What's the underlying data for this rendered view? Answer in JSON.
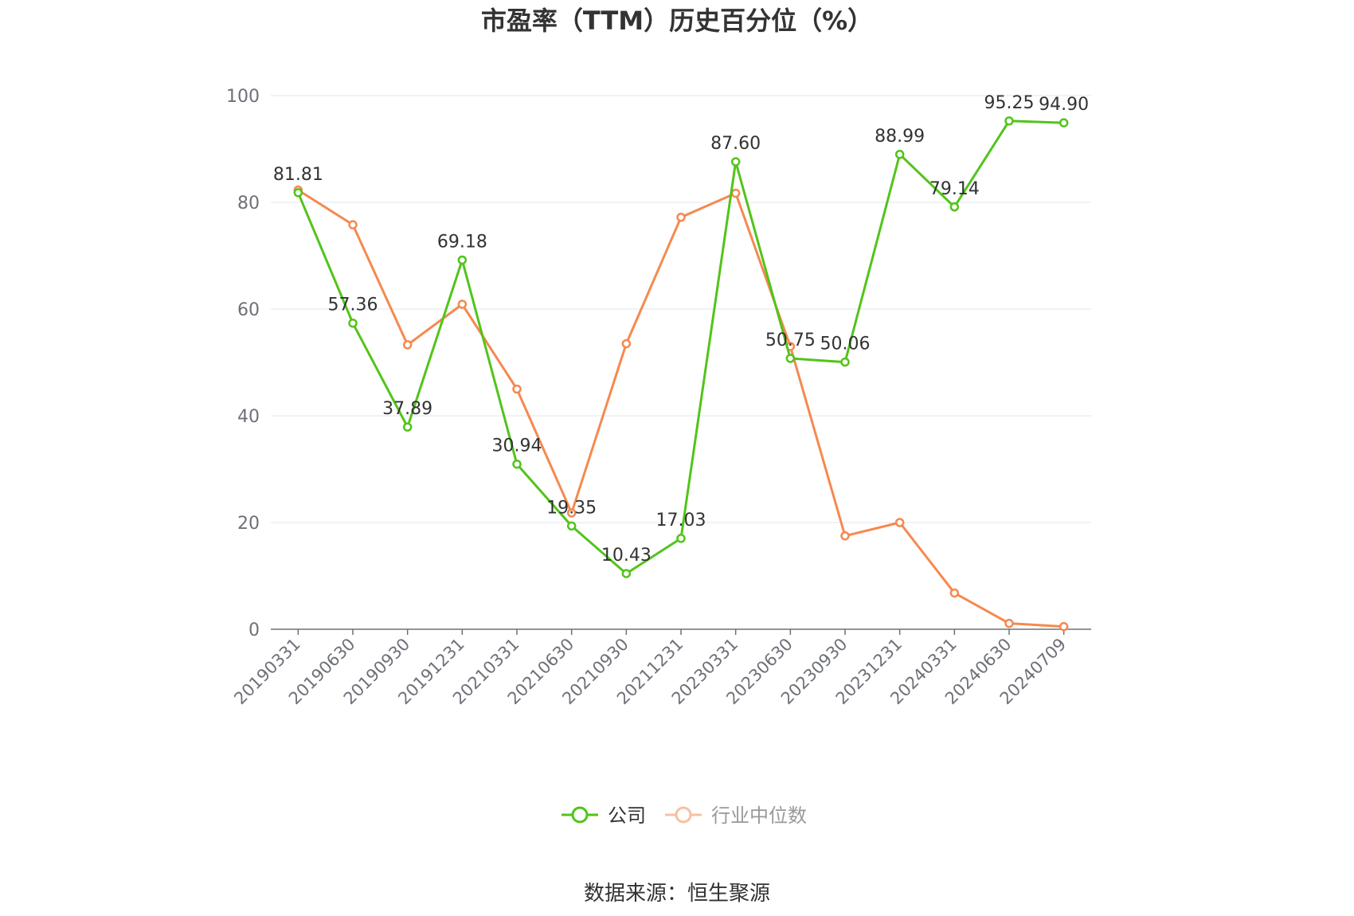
{
  "chart_data": {
    "type": "line",
    "title": "市盈率（TTM）历史百分位（%）",
    "source": "数据来源：恒生聚源",
    "categories": [
      "20190331",
      "20190630",
      "20190930",
      "20191231",
      "20210331",
      "20210630",
      "20210930",
      "20211231",
      "20230331",
      "20230630",
      "20230930",
      "20231231",
      "20240331",
      "20240630",
      "20240709"
    ],
    "ylim": [
      0,
      100
    ],
    "yticks": [
      0,
      20,
      40,
      60,
      80,
      100
    ],
    "grid": true,
    "legend_position": "bottom",
    "series": [
      {
        "name": "公司",
        "color": "#52c41a",
        "values": [
          81.81,
          57.36,
          37.89,
          69.18,
          30.94,
          19.35,
          10.43,
          17.03,
          87.6,
          50.75,
          50.06,
          88.99,
          79.14,
          95.25,
          94.9
        ],
        "labels": [
          "81.81",
          "57.36",
          "37.89",
          "69.18",
          "30.94",
          "19.35",
          "10.43",
          "17.03",
          "87.60",
          "50.75",
          "50.06",
          "88.99",
          "79.14",
          "95.25",
          "94.90"
        ]
      },
      {
        "name": "行业中位数",
        "color": "#f5894f",
        "values": [
          82.3,
          75.8,
          53.3,
          60.9,
          45.0,
          21.8,
          53.5,
          77.2,
          81.7,
          53.0,
          17.5,
          20.0,
          6.8,
          1.1,
          0.5
        ]
      }
    ]
  }
}
